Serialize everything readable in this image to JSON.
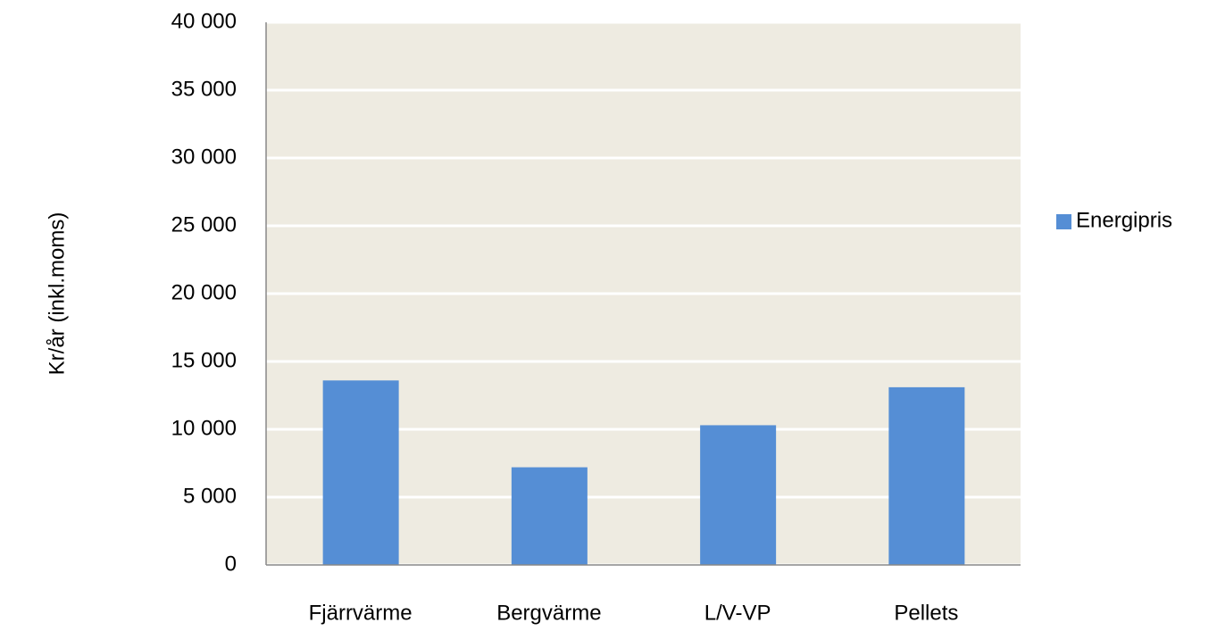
{
  "chart_data": {
    "type": "bar",
    "y_label": "Kr/år (inkl.moms)",
    "categories": [
      "Fjärrvärme",
      "Bergvärme",
      "L/V-VP",
      "Pellets"
    ],
    "series": [
      {
        "name": "Energipris",
        "color": "#558ed5",
        "values": [
          13600,
          7200,
          10300,
          13100
        ]
      }
    ],
    "ylim": [
      0,
      40000
    ],
    "yticks": [
      0,
      {
        "value": 5000,
        "label": "5 000"
      },
      {
        "value": 10000,
        "label": "10 000"
      },
      {
        "value": 15000,
        "label": "15 000"
      },
      {
        "value": 20000,
        "label": "20 000"
      },
      {
        "value": 25000,
        "label": "25 000"
      },
      {
        "value": 30000,
        "label": "30 000"
      },
      {
        "value": 35000,
        "label": "35 000"
      },
      {
        "value": 40000,
        "label": "40 000"
      }
    ],
    "grid": true,
    "legend": "right",
    "plot_background": "#eeebe1"
  }
}
